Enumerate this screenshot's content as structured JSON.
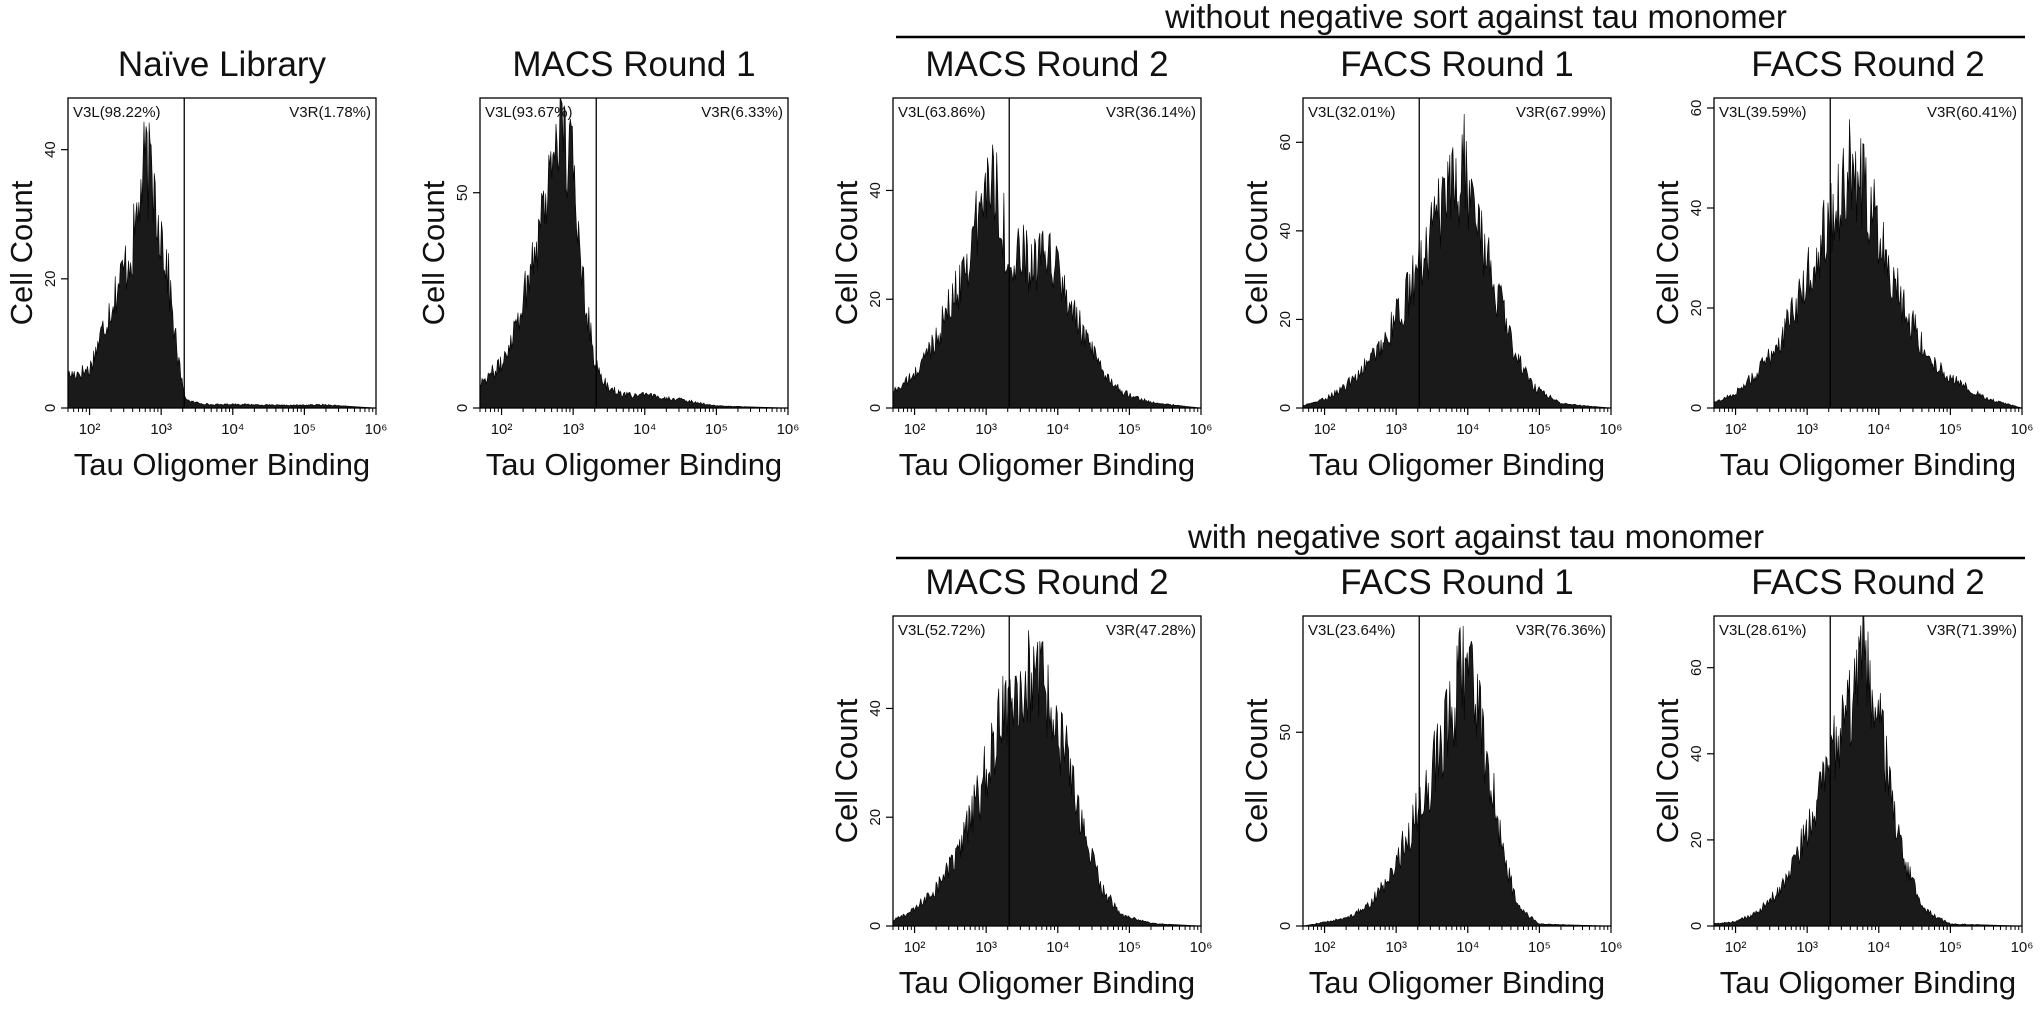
{
  "groups": [
    {
      "id": "without",
      "title": "without negative sort against tau monomer"
    },
    {
      "id": "with",
      "title": "with negative sort against tau monomer"
    }
  ],
  "chart_data": [
    {
      "type": "area",
      "title": "Naïve Library",
      "group": null,
      "xlabel": "Tau Oligomer Binding",
      "ylabel": "Cell Count",
      "xscale": "log",
      "xlim": [
        50,
        1000000
      ],
      "ylim": [
        0,
        48
      ],
      "xticks": [
        100,
        1000,
        10000,
        100000,
        1000000
      ],
      "xtick_labels": [
        "10²",
        "10³",
        "10⁴",
        "10⁵",
        "10⁶"
      ],
      "yticks": [
        0,
        20,
        40
      ],
      "ytick_labels": [
        "0",
        "20",
        "40"
      ],
      "gate_x": 2100,
      "gates": [
        {
          "name": "V3L",
          "label": "V3L(98.22%)",
          "percent": 98.22
        },
        {
          "name": "V3R",
          "label": "V3R(1.78%)",
          "percent": 1.78
        }
      ],
      "x": [
        50,
        100,
        200,
        400,
        600,
        800,
        1200,
        1700,
        2100,
        2500,
        5000,
        10000,
        50000,
        200000,
        1000000
      ],
      "y": [
        5,
        6,
        16,
        25,
        38,
        34,
        22,
        8,
        2,
        1,
        0.5,
        0.6,
        0.4,
        0.5,
        0
      ]
    },
    {
      "type": "area",
      "title": "MACS Round 1",
      "group": null,
      "xlabel": "Tau Oligomer Binding",
      "ylabel": "Cell Count",
      "xscale": "log",
      "xlim": [
        50,
        1000000
      ],
      "ylim": [
        0,
        72
      ],
      "xticks": [
        100,
        1000,
        10000,
        100000,
        1000000
      ],
      "xtick_labels": [
        "10²",
        "10³",
        "10⁴",
        "10⁵",
        "10⁶"
      ],
      "yticks": [
        0,
        50
      ],
      "ytick_labels": [
        "0",
        "50"
      ],
      "gate_x": 2100,
      "gates": [
        {
          "name": "V3L",
          "label": "V3L(93.67%)",
          "percent": 93.67
        },
        {
          "name": "V3R",
          "label": "V3R(6.33%)",
          "percent": 6.33
        }
      ],
      "x": [
        50,
        100,
        200,
        400,
        600,
        1000,
        1400,
        2000,
        3000,
        5000,
        10000,
        30000,
        100000,
        1000000
      ],
      "y": [
        6,
        10,
        25,
        48,
        66,
        55,
        30,
        10,
        5,
        3,
        3,
        2,
        0.5,
        0
      ]
    },
    {
      "type": "area",
      "title": "MACS Round 2",
      "group": "without",
      "xlabel": "Tau Oligomer Binding",
      "ylabel": "Cell Count",
      "xscale": "log",
      "xlim": [
        50,
        1000000
      ],
      "ylim": [
        0,
        57
      ],
      "xticks": [
        100,
        1000,
        10000,
        100000,
        1000000
      ],
      "xtick_labels": [
        "10²",
        "10³",
        "10⁴",
        "10⁵",
        "10⁶"
      ],
      "yticks": [
        0,
        20,
        40
      ],
      "ytick_labels": [
        "0",
        "20",
        "40"
      ],
      "gate_x": 2100,
      "gates": [
        {
          "name": "V3L",
          "label": "V3L(63.86%)",
          "percent": 63.86
        },
        {
          "name": "V3R",
          "label": "V3R(36.14%)",
          "percent": 36.14
        }
      ],
      "x": [
        50,
        100,
        200,
        400,
        800,
        1200,
        1600,
        2100,
        3000,
        5000,
        8000,
        12000,
        20000,
        40000,
        80000,
        200000,
        1000000
      ],
      "y": [
        3,
        6,
        13,
        22,
        35,
        44,
        38,
        24,
        28,
        26,
        28,
        22,
        15,
        7,
        3,
        1,
        0
      ]
    },
    {
      "type": "area",
      "title": "FACS Round 1",
      "group": "without",
      "xlabel": "Tau Oligomer Binding",
      "ylabel": "Cell Count",
      "xscale": "log",
      "xlim": [
        50,
        1000000
      ],
      "ylim": [
        0,
        70
      ],
      "xticks": [
        100,
        1000,
        10000,
        100000,
        1000000
      ],
      "xtick_labels": [
        "10²",
        "10³",
        "10⁴",
        "10⁵",
        "10⁶"
      ],
      "yticks": [
        0,
        20,
        40,
        60
      ],
      "ytick_labels": [
        "0",
        "20",
        "40",
        "60"
      ],
      "gate_x": 2100,
      "gates": [
        {
          "name": "V3L",
          "label": "V3L(32.01%)",
          "percent": 32.01
        },
        {
          "name": "V3R",
          "label": "V3R(67.99%)",
          "percent": 67.99
        }
      ],
      "x": [
        50,
        100,
        200,
        400,
        800,
        1500,
        2500,
        4000,
        6000,
        9000,
        12000,
        20000,
        40000,
        80000,
        200000,
        1000000
      ],
      "y": [
        0.5,
        2,
        5,
        10,
        17,
        26,
        35,
        43,
        48,
        55,
        45,
        32,
        15,
        5,
        1,
        0
      ]
    },
    {
      "type": "area",
      "title": "FACS Round 2",
      "group": "without",
      "xlabel": "Tau Oligomer Binding",
      "ylabel": "Cell Count",
      "xscale": "log",
      "xlim": [
        50,
        1000000
      ],
      "ylim": [
        0,
        62
      ],
      "xticks": [
        100,
        1000,
        10000,
        100000,
        1000000
      ],
      "xtick_labels": [
        "10²",
        "10³",
        "10⁴",
        "10⁵",
        "10⁶"
      ],
      "yticks": [
        0,
        20,
        40,
        60
      ],
      "ytick_labels": [
        "0",
        "20",
        "40",
        "60"
      ],
      "gate_x": 2100,
      "gates": [
        {
          "name": "V3L",
          "label": "V3L(39.59%)",
          "percent": 39.59
        },
        {
          "name": "V3R",
          "label": "V3R(60.41%)",
          "percent": 60.41
        }
      ],
      "x": [
        50,
        100,
        200,
        400,
        800,
        1500,
        2500,
        4000,
        6000,
        10000,
        20000,
        50000,
        100000,
        300000,
        1000000
      ],
      "y": [
        1,
        3,
        7,
        13,
        22,
        33,
        40,
        48,
        44,
        36,
        22,
        10,
        6,
        2,
        0
      ]
    },
    {
      "type": "area",
      "title": "MACS Round 2",
      "group": "with",
      "xlabel": "Tau Oligomer Binding",
      "ylabel": "Cell Count",
      "xscale": "log",
      "xlim": [
        50,
        1000000
      ],
      "ylim": [
        0,
        57
      ],
      "xticks": [
        100,
        1000,
        10000,
        100000,
        1000000
      ],
      "xtick_labels": [
        "10²",
        "10³",
        "10⁴",
        "10⁵",
        "10⁶"
      ],
      "yticks": [
        0,
        20,
        40
      ],
      "ytick_labels": [
        "0",
        "20",
        "40"
      ],
      "gate_x": 2100,
      "gates": [
        {
          "name": "V3L",
          "label": "V3L(52.72%)",
          "percent": 52.72
        },
        {
          "name": "V3R",
          "label": "V3R(47.28%)",
          "percent": 47.28
        }
      ],
      "x": [
        50,
        100,
        200,
        400,
        800,
        1500,
        2100,
        3000,
        5000,
        8000,
        12000,
        20000,
        40000,
        80000,
        200000,
        1000000
      ],
      "y": [
        1,
        3,
        7,
        13,
        24,
        36,
        44,
        46,
        44,
        42,
        33,
        20,
        7,
        2,
        0.5,
        0
      ]
    },
    {
      "type": "area",
      "title": "FACS Round 1",
      "group": "with",
      "xlabel": "Tau Oligomer Binding",
      "ylabel": "Cell Count",
      "xscale": "log",
      "xlim": [
        50,
        1000000
      ],
      "ylim": [
        0,
        80
      ],
      "xticks": [
        100,
        1000,
        10000,
        100000,
        1000000
      ],
      "xtick_labels": [
        "10²",
        "10³",
        "10⁴",
        "10⁵",
        "10⁶"
      ],
      "yticks": [
        0,
        50
      ],
      "ytick_labels": [
        "0",
        "50"
      ],
      "gate_x": 2100,
      "gates": [
        {
          "name": "V3L",
          "label": "V3L(23.64%)",
          "percent": 23.64
        },
        {
          "name": "V3R",
          "label": "V3R(76.36%)",
          "percent": 76.36
        }
      ],
      "x": [
        50,
        100,
        200,
        400,
        800,
        1500,
        2500,
        4000,
        6000,
        9000,
        12000,
        18000,
        30000,
        50000,
        100000,
        1000000
      ],
      "y": [
        0,
        1,
        2,
        5,
        12,
        24,
        34,
        45,
        55,
        68,
        62,
        45,
        20,
        5,
        0.5,
        0
      ]
    },
    {
      "type": "area",
      "title": "FACS Round 2",
      "group": "with",
      "xlabel": "Tau Oligomer Binding",
      "ylabel": "Cell Count",
      "xscale": "log",
      "xlim": [
        50,
        1000000
      ],
      "ylim": [
        0,
        72
      ],
      "xticks": [
        100,
        1000,
        10000,
        100000,
        1000000
      ],
      "xtick_labels": [
        "10²",
        "10³",
        "10⁴",
        "10⁵",
        "10⁶"
      ],
      "yticks": [
        0,
        20,
        40,
        60
      ],
      "ytick_labels": [
        "0",
        "20",
        "40",
        "60"
      ],
      "gate_x": 2100,
      "gates": [
        {
          "name": "V3L",
          "label": "V3L(28.61%)",
          "percent": 28.61
        },
        {
          "name": "V3R",
          "label": "V3R(71.39%)",
          "percent": 71.39
        }
      ],
      "x": [
        50,
        100,
        200,
        400,
        800,
        1500,
        2500,
        4000,
        6000,
        8000,
        12000,
        20000,
        40000,
        100000,
        1000000
      ],
      "y": [
        0.5,
        1,
        3,
        8,
        18,
        30,
        42,
        50,
        60,
        55,
        40,
        18,
        4,
        0.5,
        0
      ]
    }
  ]
}
